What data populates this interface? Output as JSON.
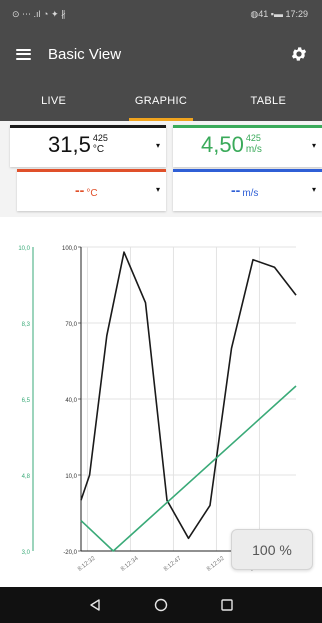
{
  "status_bar": {
    "left_icons": "⊙ ⋯ .ıl ◔ ✦ ∦",
    "right_text": "◍41 ▪▬ 17:29"
  },
  "app_bar": {
    "title": "Basic View",
    "menu_icon": "hamburger-icon",
    "settings_icon": "gear-icon"
  },
  "tabs": [
    {
      "label": "LIVE",
      "active": false
    },
    {
      "label": "GRAPHIC",
      "active": true
    },
    {
      "label": "TABLE",
      "active": false
    }
  ],
  "colors": {
    "dark_bar": "#4a4a4a",
    "tab_indicator": "#f0a41e",
    "black_series": "#1a1a1a",
    "green_series": "#3aaa78",
    "red_accent": "#e0502a",
    "blue_accent": "#2f5fd6"
  },
  "cards": [
    {
      "value": "31,5",
      "superscript": "425",
      "unit": "°C",
      "accent": "#1a1a1a",
      "value_color": "#111111",
      "dropdown": "▾"
    },
    {
      "value": "4,50",
      "superscript": "425",
      "unit": "m/s",
      "accent": "#3aaa5a",
      "value_color": "#3aaa5a",
      "dropdown": "▾"
    },
    {
      "value": "--",
      "superscript": "",
      "unit": "°C",
      "accent": "#e0502a",
      "value_color": "#e0502a",
      "dropdown": "▾"
    },
    {
      "value": "--",
      "superscript": "",
      "unit": "m/s",
      "accent": "#2f5fd6",
      "value_color": "#2f5fd6",
      "dropdown": "▾"
    }
  ],
  "chart_data": {
    "type": "line",
    "x": [
      "8:12:32",
      "8:12:34",
      "8:12:47",
      "8:12:52",
      "8:12:56"
    ],
    "y_left_black": {
      "ticks": [
        "100,0",
        "70,0",
        "40,0",
        "10,0",
        "-20,0"
      ],
      "range": [
        -20,
        100
      ]
    },
    "y_left_green": {
      "ticks": [
        "10,0",
        "8,3",
        "6,5",
        "4,8",
        "3,0"
      ],
      "range": [
        3,
        10
      ]
    },
    "series": [
      {
        "color": "#1a1a1a",
        "axis": "black",
        "points": [
          [
            0,
            0
          ],
          [
            0.04,
            10
          ],
          [
            0.12,
            65
          ],
          [
            0.2,
            98
          ],
          [
            0.3,
            78
          ],
          [
            0.4,
            0
          ],
          [
            0.5,
            -15
          ],
          [
            0.6,
            -2
          ],
          [
            0.7,
            60
          ],
          [
            0.8,
            95
          ],
          [
            0.9,
            92
          ],
          [
            1.0,
            81
          ]
        ]
      },
      {
        "color": "#3aaa78",
        "axis": "green",
        "points": [
          [
            0,
            3.7
          ],
          [
            0.15,
            3.0
          ],
          [
            1.0,
            6.8
          ]
        ]
      }
    ],
    "grid": true,
    "zoom_label": "100 %"
  },
  "nav": {
    "back_icon": "back-triangle-icon",
    "home_icon": "home-circle-icon",
    "recents_icon": "recents-square-icon"
  }
}
